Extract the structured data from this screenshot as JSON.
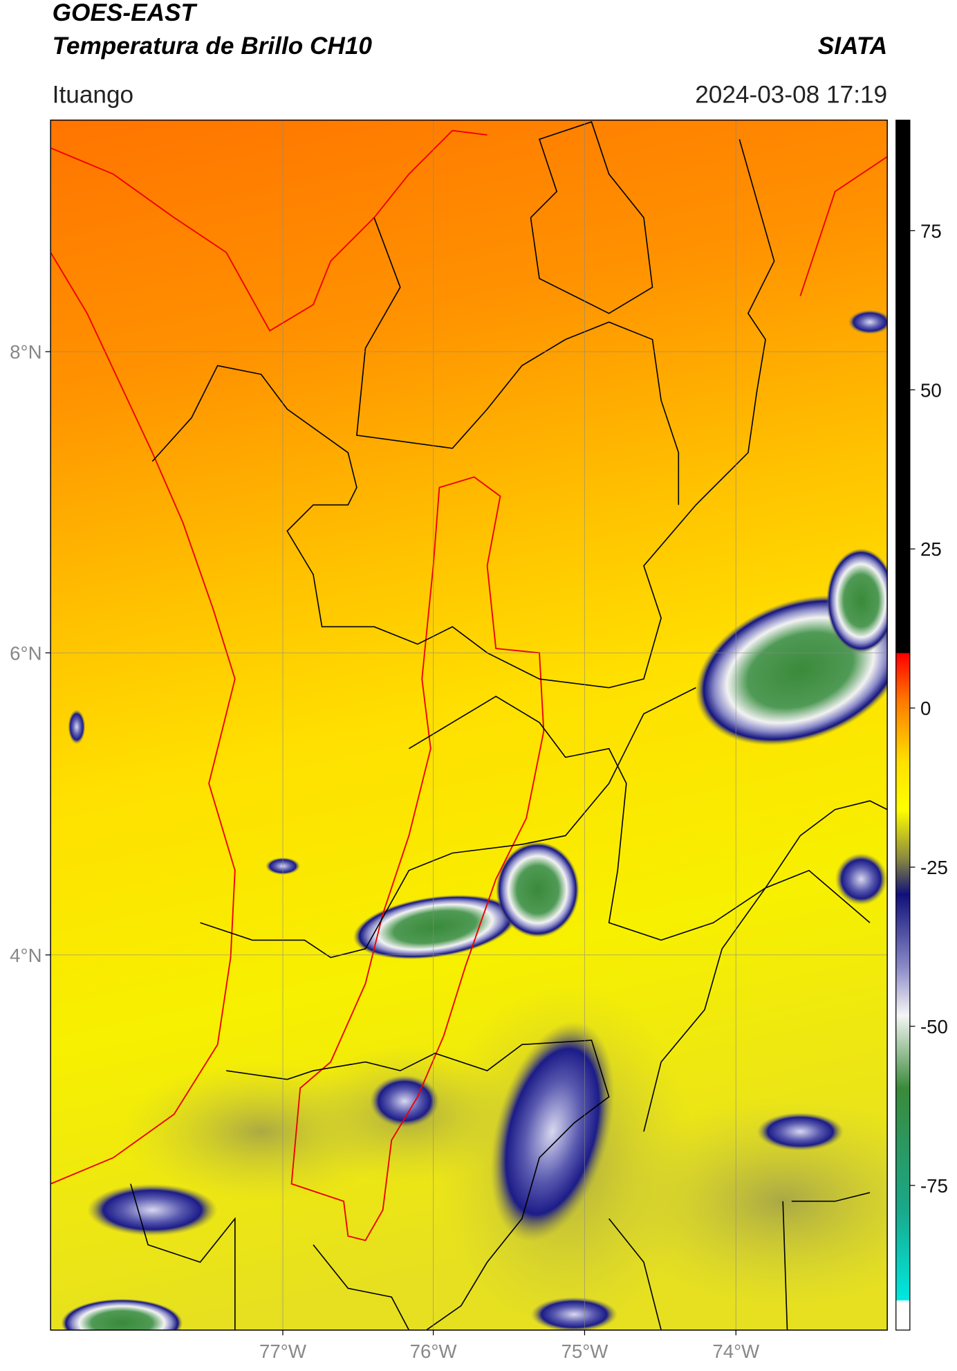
{
  "header": {
    "title": "GOES-EAST",
    "subtitle": "Temperatura de Brillo CH10",
    "source": "SIATA",
    "location": "Ituango",
    "timestamp": "2024-03-08 17:19"
  },
  "map": {
    "lat_ticks": [
      "8°N",
      "6°N",
      "4°N"
    ],
    "lon_ticks": [
      "77°W",
      "76°W",
      "75°W",
      "74°W"
    ]
  },
  "colorbar": {
    "ticks": [
      "75",
      "50",
      "25",
      "0",
      "-25",
      "-50",
      "-75"
    ]
  }
}
